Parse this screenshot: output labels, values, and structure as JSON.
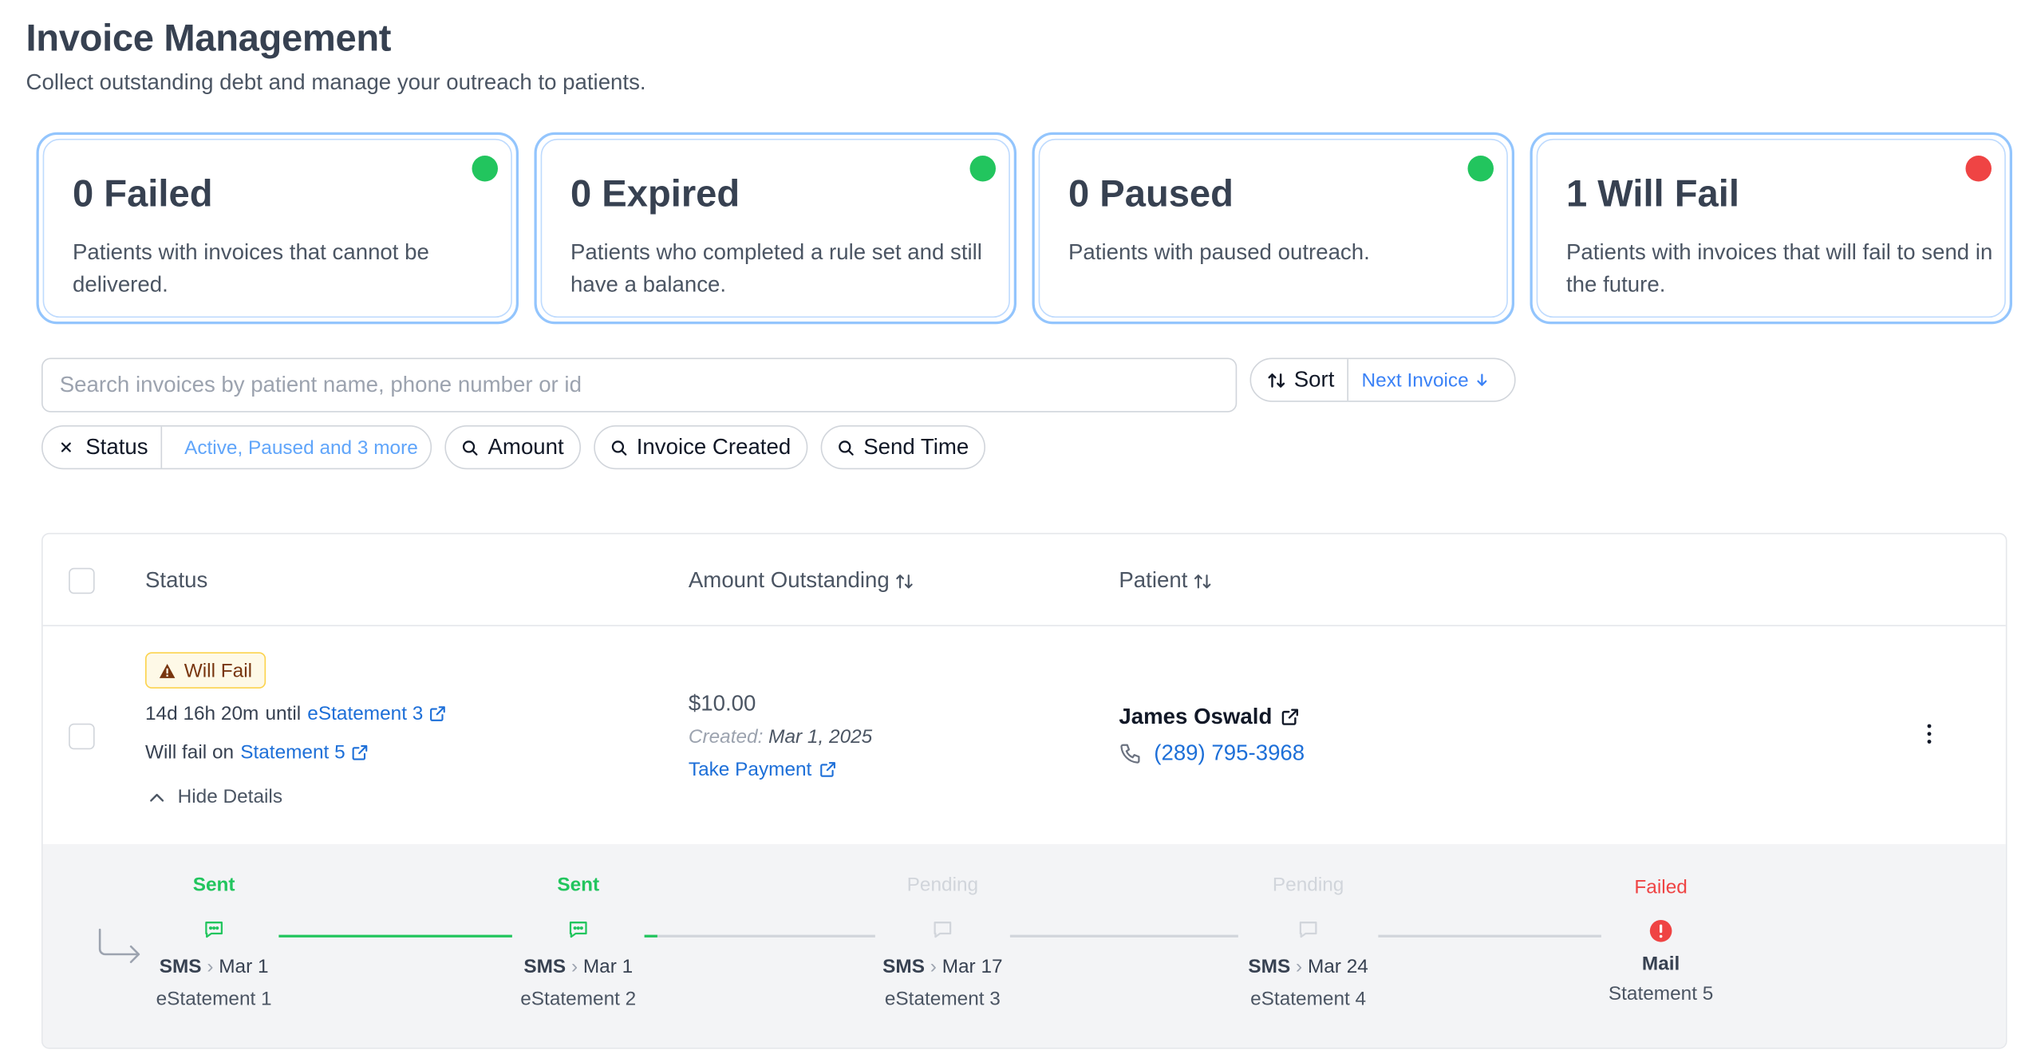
{
  "page": {
    "title": "Invoice Management",
    "subtitle": "Collect outstanding debt and manage your outreach to patients."
  },
  "cards": [
    {
      "title": "0 Failed",
      "desc": "Patients with invoices that cannot be delivered.",
      "dot_color": "#22c55e"
    },
    {
      "title": "0 Expired",
      "desc": "Patients who completed a rule set and still have a balance.",
      "dot_color": "#22c55e"
    },
    {
      "title": "0 Paused",
      "desc": "Patients with paused outreach.",
      "dot_color": "#22c55e"
    },
    {
      "title": "1 Will Fail",
      "desc": "Patients with invoices that will fail to send in the future.",
      "dot_color": "#ef4444"
    }
  ],
  "search": {
    "placeholder": "Search invoices by patient name, phone number or id",
    "value": ""
  },
  "sort": {
    "label": "Sort",
    "value": "Next Invoice"
  },
  "filters": {
    "status": {
      "label": "Status",
      "value": "Active, Paused and 3 more"
    },
    "amount": "Amount",
    "invoice_created": "Invoice Created",
    "send_time": "Send Time"
  },
  "table": {
    "headers": {
      "status": "Status",
      "amount": "Amount Outstanding",
      "patient": "Patient"
    },
    "rows": [
      {
        "badge": "Will Fail",
        "countdown": "14d 16h 20m",
        "until_text": "until",
        "until_link": "eStatement 3",
        "fail_text": "Will fail on",
        "fail_link": "Statement 5",
        "toggle": "Hide Details",
        "amount": "$10.00",
        "created_label": "Created:",
        "created_date": "Mar 1, 2025",
        "take_payment": "Take Payment",
        "patient_name": "James Oswald",
        "phone": "(289) 795-3968"
      }
    ]
  },
  "timeline": [
    {
      "status": "Sent",
      "status_color": "#22c55e",
      "channel": "SMS",
      "date": "Mar 1",
      "name": "eStatement 1",
      "icon": "message-icon"
    },
    {
      "status": "Sent",
      "status_color": "#22c55e",
      "channel": "SMS",
      "date": "Mar 1",
      "name": "eStatement 2",
      "icon": "message-icon"
    },
    {
      "status": "Pending",
      "status_color": "#d1d5db",
      "channel": "SMS",
      "date": "Mar 17",
      "name": "eStatement 3",
      "icon": "message-icon"
    },
    {
      "status": "Pending",
      "status_color": "#d1d5db",
      "channel": "SMS",
      "date": "Mar 24",
      "name": "eStatement 4",
      "icon": "message-icon"
    },
    {
      "status": "Failed",
      "status_color": "#ef4444",
      "channel": "Mail",
      "date": "",
      "name": "Statement 5",
      "icon": "error-icon"
    }
  ],
  "colors": {
    "accent": "#1d6fd8",
    "success": "#22c55e",
    "danger": "#ef4444",
    "card_border": "#93c5fd"
  }
}
